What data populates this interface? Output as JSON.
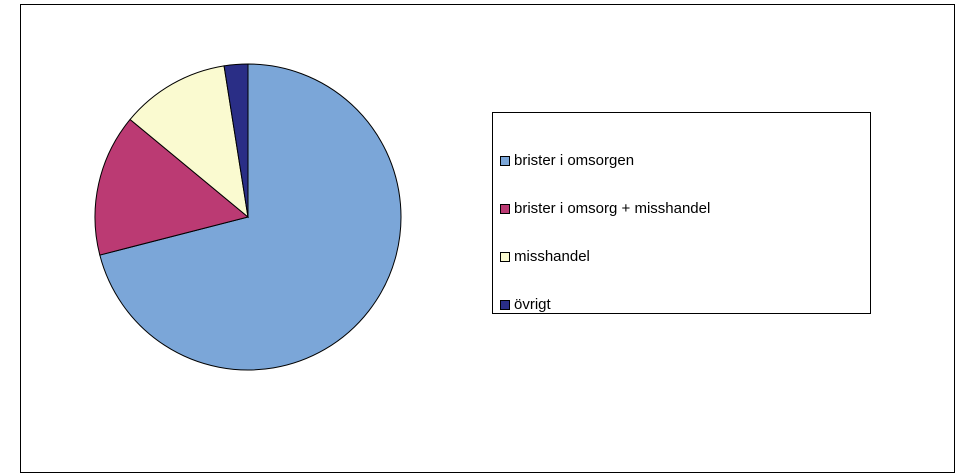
{
  "chart_data": {
    "type": "pie",
    "categories": [
      "brister i omsorgen",
      "brister i omsorg + misshandel",
      "misshandel",
      "övrigt"
    ],
    "values": [
      71,
      15,
      11.5,
      2.5
    ],
    "colors": [
      "#7ba6d8",
      "#bb3a73",
      "#fafad0",
      "#2a2e86"
    ],
    "legend": "right"
  }
}
